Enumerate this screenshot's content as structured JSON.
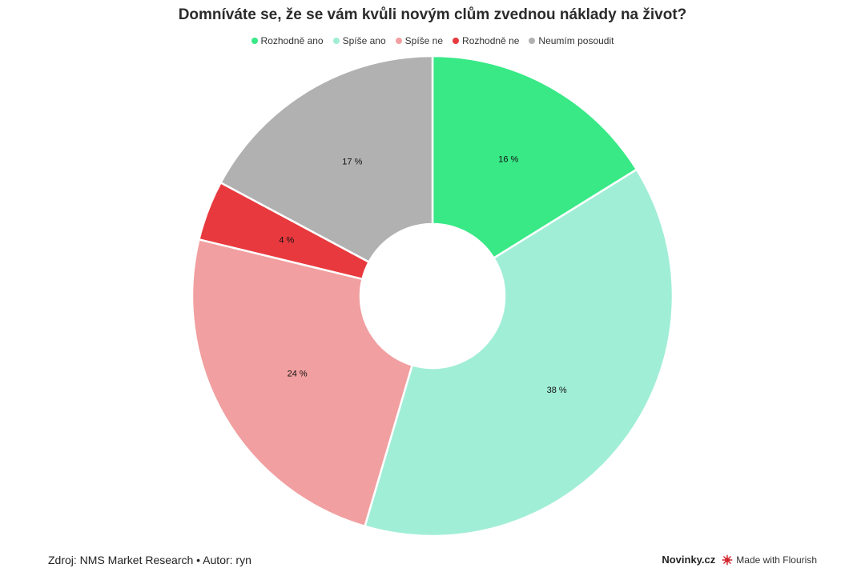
{
  "chart_data": {
    "type": "pie",
    "title": "Domníváte se, že se vám kvůli novým clům zvednou náklady na život?",
    "legend_position": "top",
    "categories": [
      "Rozhodně ano",
      "Spíše ano",
      "Spíše ne",
      "Rozhodně ne",
      "Neumím posoudit"
    ],
    "values": [
      16,
      38,
      24,
      4,
      17
    ],
    "labels": [
      "16 %",
      "38 %",
      "24 %",
      "4 %",
      "17 %"
    ],
    "colors": [
      "#38e986",
      "#a1eed6",
      "#f19fa0",
      "#e83a3e",
      "#b1b1b1"
    ],
    "inner_radius_fraction": 0.3
  },
  "footer": {
    "source": "Zdroj: NMS Market Research • Autor: ryn",
    "brand": "Novinky.cz",
    "flourish_label": "Made with Flourish",
    "flourish_icon": "flourish-logo-icon"
  }
}
